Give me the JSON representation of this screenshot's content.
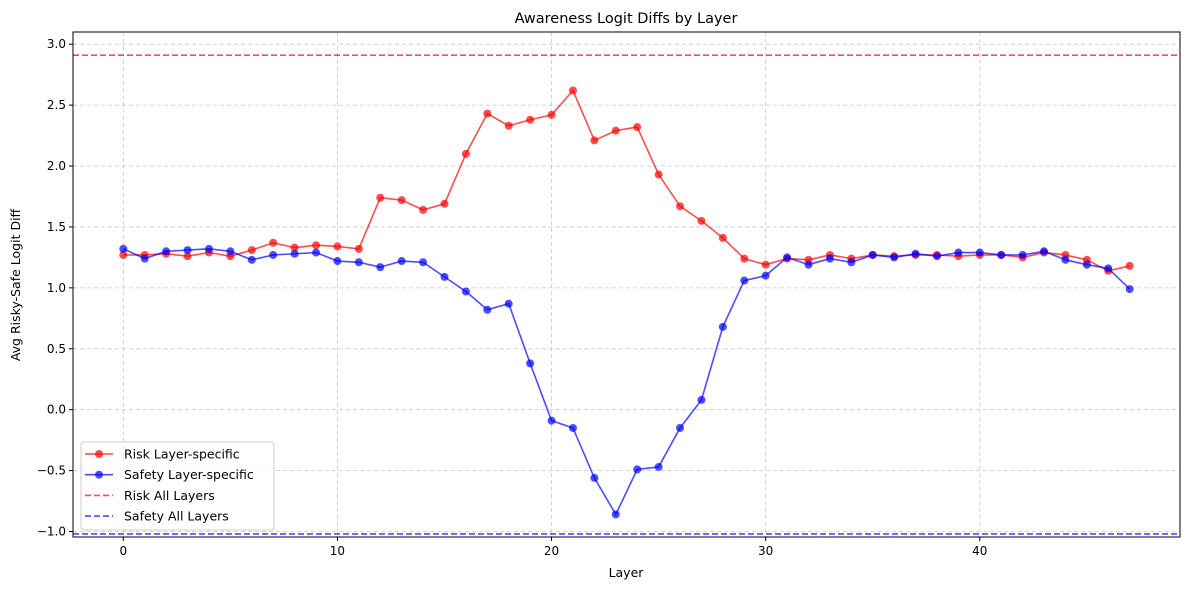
{
  "chart_data": {
    "type": "line",
    "title": "Awareness Logit Diffs by Layer",
    "xlabel": "Layer",
    "ylabel": "Avg Risky-Safe Logit Diff",
    "xlim": [
      -2.35,
      49.35
    ],
    "ylim": [
      -1.045,
      3.1
    ],
    "xticks": [
      0,
      10,
      20,
      30,
      40
    ],
    "yticks": [
      -1.0,
      -0.5,
      0.0,
      0.5,
      1.0,
      1.5,
      2.0,
      2.5,
      3.0
    ],
    "xtick_labels": [
      "0",
      "10",
      "20",
      "30",
      "40"
    ],
    "ytick_labels": [
      "−1.0",
      "−0.5",
      "0.0",
      "0.5",
      "1.0",
      "1.5",
      "2.0",
      "2.5",
      "3.0"
    ],
    "grid": true,
    "legend_placement": "lower-left",
    "x": [
      0,
      1,
      2,
      3,
      4,
      5,
      6,
      7,
      8,
      9,
      10,
      11,
      12,
      13,
      14,
      15,
      16,
      17,
      18,
      19,
      20,
      21,
      22,
      23,
      24,
      25,
      26,
      27,
      28,
      29,
      30,
      31,
      32,
      33,
      34,
      35,
      36,
      37,
      38,
      39,
      40,
      41,
      42,
      43,
      44,
      45,
      46,
      47
    ],
    "series": [
      {
        "name": "Risk Layer-specific",
        "color": "#ff0000",
        "style": "line-marker",
        "values": [
          1.27,
          1.27,
          1.28,
          1.26,
          1.29,
          1.26,
          1.31,
          1.37,
          1.33,
          1.35,
          1.34,
          1.32,
          1.74,
          1.72,
          1.64,
          1.69,
          2.1,
          2.43,
          2.33,
          2.38,
          2.42,
          2.62,
          2.21,
          2.29,
          2.32,
          1.93,
          1.67,
          1.55,
          1.41,
          1.24,
          1.19,
          1.24,
          1.23,
          1.27,
          1.24,
          1.27,
          1.26,
          1.27,
          1.27,
          1.26,
          1.27,
          1.27,
          1.25,
          1.29,
          1.27,
          1.23,
          1.14,
          1.18
        ]
      },
      {
        "name": "Safety Layer-specific",
        "color": "#0000ff",
        "style": "line-marker",
        "values": [
          1.32,
          1.24,
          1.3,
          1.31,
          1.32,
          1.3,
          1.23,
          1.27,
          1.28,
          1.29,
          1.22,
          1.21,
          1.17,
          1.22,
          1.21,
          1.09,
          0.97,
          0.82,
          0.87,
          0.38,
          -0.09,
          -0.15,
          -0.56,
          -0.86,
          -0.49,
          -0.47,
          -0.15,
          0.08,
          0.68,
          1.06,
          1.1,
          1.25,
          1.19,
          1.24,
          1.21,
          1.27,
          1.25,
          1.28,
          1.26,
          1.29,
          1.29,
          1.27,
          1.27,
          1.3,
          1.23,
          1.19,
          1.16,
          0.99
        ]
      },
      {
        "name": "Risk All Layers",
        "color": "#ff0000",
        "style": "dashed-hline",
        "value": 2.91
      },
      {
        "name": "Safety All Layers",
        "color": "#0000ff",
        "style": "dashed-hline",
        "value": -1.02
      }
    ]
  }
}
